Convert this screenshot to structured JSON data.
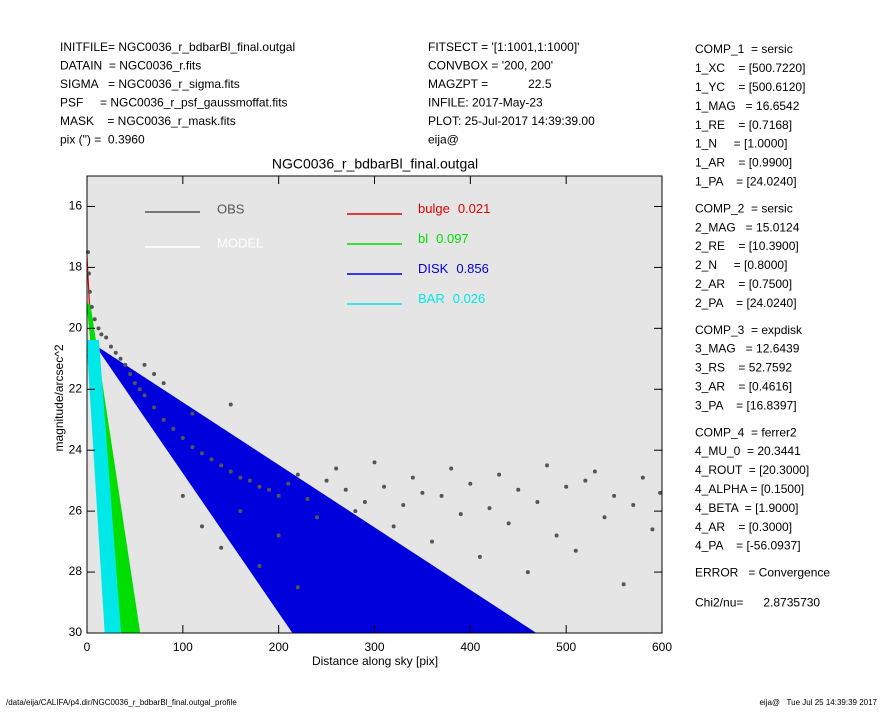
{
  "header": {
    "left": [
      "INITFILE= NGC0036_r_bdbarBl_final.outgal",
      "DATAIN  = NGC0036_r.fits",
      "SIGMA   = NGC0036_r_sigma.fits",
      "PSF     = NGC0036_r_psf_gaussmoffat.fits",
      "MASK    = NGC0036_r_mask.fits",
      "pix (\") =  0.3960"
    ],
    "middle": [
      "FITSECT = '[1:1001,1:1000]'",
      "CONVBOX = '200, 200'",
      "MAGZPT =            22.5",
      "INFILE: 2017-May-23",
      "PLOT: 25-Jul-2017 14:39:39.00",
      "eija@"
    ]
  },
  "params": [
    [
      "COMP_1  = sersic",
      "1_XC    = [500.7220]",
      "1_YC    = [500.6120]",
      "1_MAG   = 16.6542",
      "1_RE    = [0.7168]",
      "1_N     = [1.0000]",
      "1_AR    = [0.9900]",
      "1_PA    = [24.0240]"
    ],
    [
      "COMP_2  = sersic",
      "2_MAG   = 15.0124",
      "2_RE    = [10.3900]",
      "2_N     = [0.8000]",
      "2_AR    = [0.7500]",
      "2_PA    = [24.0240]"
    ],
    [
      "COMP_3  = expdisk",
      "3_MAG   = 12.6439",
      "3_RS    = 52.7592",
      "3_AR    = [0.4616]",
      "3_PA    = [16.8397]"
    ],
    [
      "COMP_4  = ferrer2",
      "4_MU_0  = 20.3441",
      "4_ROUT  = [20.3000]",
      "4_ALPHA = [0.1500]",
      "4_BETA  = [1.9000]",
      "4_AR    = [0.3000]",
      "4_PA    = [-56.0937]"
    ],
    [
      "ERROR   = Convergence"
    ],
    [
      "Chi2/nu=      2.8735730"
    ]
  ],
  "footer": {
    "left": "/data/eija/CALIFA/p4.dir/NGC0036_r_bdbarBl_final.outgal_profile",
    "right": "eija@   Tue Jul 25 14:39:39 2017"
  },
  "chart_data": {
    "type": "scatter",
    "title": "NGC0036_r_bdbarBl_final.outgal",
    "x_label": "Distance along sky [pix]",
    "y_label": "magnitude/arcsec^2",
    "xlim": [
      0,
      600
    ],
    "ylim": [
      15,
      30
    ],
    "xticks": [
      0,
      100,
      200,
      300,
      400,
      500,
      600
    ],
    "yticks": [
      16,
      18,
      20,
      22,
      24,
      26,
      28,
      30
    ],
    "points": {
      "name": "OBS",
      "color": "#555555",
      "x": [
        1,
        2,
        3,
        5,
        8,
        12,
        15,
        20,
        25,
        30,
        35,
        40,
        45,
        50,
        55,
        60,
        70,
        80,
        90,
        100,
        110,
        120,
        130,
        140,
        150,
        160,
        170,
        180,
        190,
        200,
        210,
        220,
        230,
        240,
        250,
        260,
        270,
        280,
        290,
        300,
        310,
        320,
        330,
        340,
        350,
        360,
        370,
        380,
        390,
        400,
        410,
        420,
        430,
        440,
        450,
        460,
        470,
        480,
        490,
        500,
        510,
        520,
        530,
        540,
        550,
        560,
        570,
        580,
        590,
        598,
        100,
        120,
        140,
        160,
        180,
        200,
        220,
        150,
        110,
        60,
        70,
        80
      ],
      "values": [
        17.5,
        18.2,
        18.8,
        19.3,
        19.7,
        20.0,
        20.2,
        20.3,
        20.6,
        20.8,
        21.0,
        21.2,
        21.5,
        21.8,
        22.0,
        22.2,
        22.6,
        23.0,
        23.3,
        23.6,
        23.9,
        24.1,
        24.3,
        24.5,
        24.7,
        24.9,
        25.0,
        25.2,
        25.3,
        25.5,
        25.1,
        24.8,
        25.6,
        26.2,
        25.0,
        24.6,
        25.3,
        26.0,
        25.7,
        24.4,
        25.2,
        26.5,
        25.8,
        24.9,
        25.4,
        27.0,
        25.5,
        24.6,
        26.1,
        25.1,
        27.5,
        25.9,
        24.8,
        26.4,
        25.3,
        28.0,
        25.7,
        24.5,
        26.8,
        25.2,
        27.3,
        25.0,
        24.7,
        26.2,
        25.5,
        28.4,
        25.8,
        24.9,
        26.6,
        25.4,
        25.5,
        26.5,
        27.2,
        26.0,
        27.8,
        26.8,
        28.5,
        22.5,
        22.8,
        21.2,
        21.5,
        21.8
      ]
    },
    "model": {
      "name": "MODEL",
      "color": "#ffffff"
    },
    "series": [
      {
        "name": "bulge",
        "fraction": 0.021,
        "color": "#e00000",
        "filled": false,
        "edges": [
          {
            "x": [
              0,
              5,
              10,
              15,
              20,
              23
            ],
            "values": [
              17.6,
              21,
              23.6,
              25.8,
              28,
              30
            ]
          },
          {
            "x": [
              0,
              5,
              10,
              15,
              20,
              25
            ],
            "values": [
              17.6,
              20.6,
              23.2,
              25.4,
              27.5,
              30
            ]
          }
        ]
      },
      {
        "name": "bl",
        "fraction": 0.097,
        "color": "#00dd00",
        "filled": true,
        "edges": [
          {
            "x": [
              0,
              36
            ],
            "values": [
              19.2,
              30
            ]
          },
          {
            "x": [
              3,
              55
            ],
            "values": [
              19.2,
              30
            ]
          }
        ]
      },
      {
        "name": "DISK",
        "fraction": 0.856,
        "color": "#0000dd",
        "filled": true,
        "edges": [
          {
            "x": [
              10,
              215
            ],
            "values": [
              20.6,
              30
            ]
          },
          {
            "x": [
              10,
              468
            ],
            "values": [
              20.6,
              30
            ]
          }
        ]
      },
      {
        "name": "BAR",
        "fraction": 0.026,
        "color": "#00e8e8",
        "filled": true,
        "edges": [
          {
            "x": [
              0,
              19
            ],
            "values": [
              20.4,
              30
            ]
          },
          {
            "x": [
              12,
              35
            ],
            "values": [
              20.4,
              30
            ]
          }
        ]
      }
    ]
  }
}
